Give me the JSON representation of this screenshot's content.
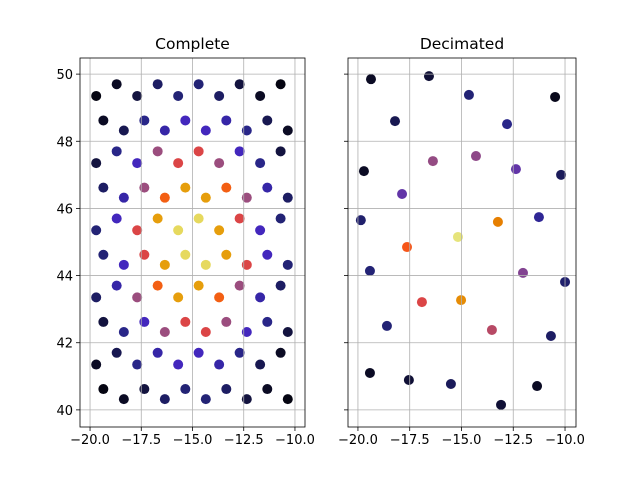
{
  "chart_data": [
    {
      "type": "scatter",
      "title": "Complete",
      "x": [
        -19.35,
        -18.35,
        -17.35,
        -16.35,
        -15.35,
        -14.35,
        -13.35,
        -12.35,
        -11.35,
        -10.35,
        -19.7,
        -18.7,
        -17.7,
        -16.7,
        -15.7,
        -14.7,
        -13.7,
        -12.7,
        -11.7,
        -10.7,
        -19.35,
        -18.35,
        -17.35,
        -16.35,
        -15.35,
        -14.35,
        -13.35,
        -12.35,
        -11.35,
        -10.35,
        -19.7,
        -18.7,
        -17.7,
        -16.7,
        -15.7,
        -14.7,
        -13.7,
        -12.7,
        -11.7,
        -10.7,
        -19.35,
        -18.35,
        -17.35,
        -16.35,
        -15.35,
        -14.35,
        -13.35,
        -12.35,
        -11.35,
        -10.35,
        -19.7,
        -18.7,
        -17.7,
        -16.7,
        -15.7,
        -14.7,
        -13.7,
        -12.7,
        -11.7,
        -10.7,
        -19.35,
        -18.35,
        -17.35,
        -16.35,
        -15.35,
        -14.35,
        -13.35,
        -12.35,
        -11.35,
        -10.35,
        -19.7,
        -18.7,
        -17.7,
        -16.7,
        -15.7,
        -14.7,
        -13.7,
        -12.7,
        -11.7,
        -10.7,
        -19.35,
        -18.35,
        -17.35,
        -16.35,
        -15.35,
        -14.35,
        -13.35,
        -12.35,
        -11.35,
        -10.35,
        -19.7,
        -18.7,
        -17.7,
        -16.7,
        -15.7,
        -14.7,
        -13.7,
        -12.7,
        -11.7,
        -10.7
      ],
      "y": [
        40.62,
        40.32,
        40.62,
        40.32,
        40.62,
        40.32,
        40.62,
        40.32,
        40.62,
        40.32,
        41.35,
        41.7,
        41.35,
        41.7,
        41.35,
        41.7,
        41.35,
        41.7,
        41.35,
        41.7,
        42.62,
        42.32,
        42.62,
        42.32,
        42.62,
        42.32,
        42.62,
        42.32,
        42.62,
        42.32,
        43.35,
        43.7,
        43.35,
        43.7,
        43.35,
        43.7,
        43.35,
        43.7,
        43.35,
        43.7,
        44.62,
        44.32,
        44.62,
        44.32,
        44.62,
        44.32,
        44.62,
        44.32,
        44.62,
        44.32,
        45.35,
        45.7,
        45.35,
        45.7,
        45.35,
        45.7,
        45.35,
        45.7,
        45.35,
        45.7,
        46.62,
        46.32,
        46.62,
        46.32,
        46.62,
        46.32,
        46.62,
        46.32,
        46.62,
        46.32,
        47.35,
        47.7,
        47.35,
        47.7,
        47.35,
        47.7,
        47.35,
        47.7,
        47.35,
        47.7,
        48.62,
        48.32,
        48.62,
        48.32,
        48.62,
        48.32,
        48.62,
        48.32,
        48.62,
        48.32,
        49.35,
        49.7,
        49.35,
        49.7,
        49.35,
        49.7,
        49.35,
        49.7,
        49.35,
        49.7
      ],
      "c": [
        0.02,
        0.04,
        0.07,
        0.11,
        0.13,
        0.13,
        0.11,
        0.07,
        0.04,
        0.02,
        0.04,
        0.09,
        0.16,
        0.23,
        0.29,
        0.29,
        0.23,
        0.16,
        0.09,
        0.04,
        0.07,
        0.16,
        0.29,
        0.43,
        0.52,
        0.52,
        0.43,
        0.29,
        0.16,
        0.07,
        0.11,
        0.23,
        0.43,
        0.64,
        0.78,
        0.78,
        0.64,
        0.43,
        0.23,
        0.11,
        0.13,
        0.29,
        0.52,
        0.78,
        0.95,
        0.95,
        0.78,
        0.52,
        0.29,
        0.13,
        0.13,
        0.29,
        0.52,
        0.78,
        0.95,
        0.95,
        0.78,
        0.52,
        0.29,
        0.13,
        0.11,
        0.23,
        0.43,
        0.64,
        0.78,
        0.78,
        0.64,
        0.43,
        0.23,
        0.11,
        0.07,
        0.16,
        0.29,
        0.43,
        0.52,
        0.52,
        0.43,
        0.29,
        0.16,
        0.07,
        0.04,
        0.09,
        0.16,
        0.23,
        0.29,
        0.29,
        0.23,
        0.16,
        0.09,
        0.04,
        0.02,
        0.04,
        0.07,
        0.11,
        0.13,
        0.13,
        0.11,
        0.07,
        0.04,
        0.02
      ],
      "colormap": [
        "#000000",
        "#262680",
        "#4026bf",
        "#994d80",
        "#ff4026",
        "#e68000",
        "#e6bf1a",
        "#e6e680",
        "#ffffff"
      ],
      "clim": [
        0,
        1.14
      ],
      "xlim": [
        -20.49,
        -9.51
      ],
      "ylim": [
        39.49,
        50.48
      ],
      "xticks": [
        {
          "value": -20,
          "label": "−20.0"
        },
        {
          "value": -17.5,
          "label": "−17.5"
        },
        {
          "value": -15,
          "label": "−15.0"
        },
        {
          "value": -12.5,
          "label": "−12.5"
        },
        {
          "value": -10,
          "label": "−10.0"
        }
      ],
      "yticks": [
        40,
        42,
        44,
        46,
        48,
        50
      ],
      "ytick_labels": true,
      "grid": true
    },
    {
      "type": "scatter",
      "title": "Decimated",
      "x": [
        -19.37,
        -16.57,
        -14.64,
        -10.48,
        -18.21,
        -12.8,
        -19.71,
        -16.38,
        -14.3,
        -12.37,
        -10.19,
        -17.87,
        -19.86,
        -13.24,
        -11.26,
        -15.17,
        -17.63,
        -19.42,
        -12.03,
        -10.0,
        -16.91,
        -15.02,
        -18.6,
        -13.53,
        -10.68,
        -19.42,
        -17.54,
        -15.51,
        -13.09,
        -11.35
      ],
      "y": [
        49.85,
        49.94,
        49.38,
        49.32,
        48.6,
        48.51,
        47.11,
        47.41,
        47.56,
        47.17,
        47.0,
        46.43,
        45.65,
        45.6,
        45.74,
        45.15,
        44.85,
        44.14,
        44.08,
        43.81,
        43.21,
        43.27,
        42.5,
        42.38,
        42.2,
        41.1,
        40.89,
        40.77,
        40.15,
        40.71
      ],
      "c": [
        0.04,
        0.06,
        0.13,
        0.03,
        0.09,
        0.16,
        0.04,
        0.42,
        0.41,
        0.34,
        0.1,
        0.34,
        0.12,
        0.71,
        0.19,
        0.99,
        0.62,
        0.13,
        0.39,
        0.12,
        0.52,
        0.74,
        0.13,
        0.47,
        0.11,
        0.04,
        0.06,
        0.1,
        0.06,
        0.04
      ],
      "colormap": [
        "#000000",
        "#262680",
        "#4026bf",
        "#994d80",
        "#ff4026",
        "#e68000",
        "#e6bf1a",
        "#e6e680",
        "#ffffff"
      ],
      "clim": [
        0,
        1.14
      ],
      "xlim": [
        -20.48,
        -9.47
      ],
      "ylim": [
        39.49,
        50.48
      ],
      "xticks": [
        {
          "value": -20,
          "label": "−20.0"
        },
        {
          "value": -17.5,
          "label": "−17.5"
        },
        {
          "value": -15,
          "label": "−15.0"
        },
        {
          "value": -12.5,
          "label": "−12.5"
        },
        {
          "value": -10,
          "label": "−10.0"
        }
      ],
      "yticks": [
        40,
        42,
        44,
        46,
        48,
        50
      ],
      "ytick_labels": false,
      "grid": true
    }
  ]
}
